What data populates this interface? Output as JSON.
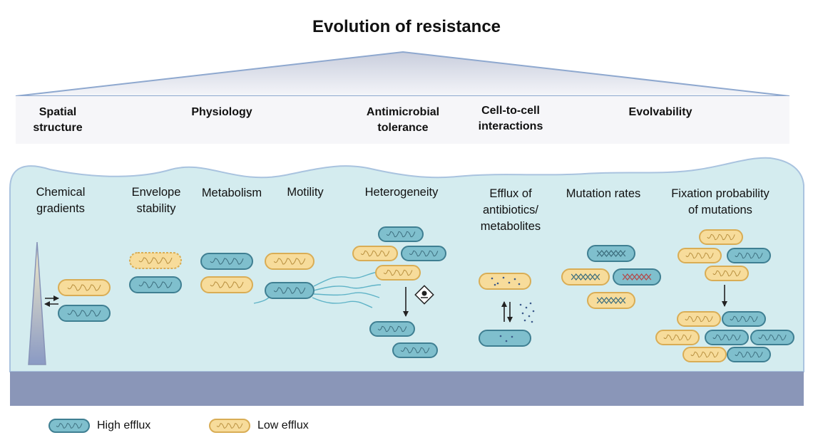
{
  "title": "Evolution of resistance",
  "categories": [
    {
      "line1": "Spatial",
      "line2": "structure"
    },
    {
      "line1": "Physiology",
      "line2": ""
    },
    {
      "line1": "Antimicrobial",
      "line2": "tolerance"
    },
    {
      "line1": "Cell-to-cell",
      "line2": "interactions"
    },
    {
      "line1": "Evolvability",
      "line2": ""
    }
  ],
  "labels": [
    {
      "line1": "Chemical",
      "line2": "gradients",
      "line3": ""
    },
    {
      "line1": "Envelope",
      "line2": "stability",
      "line3": ""
    },
    {
      "line1": "Metabolism",
      "line2": "",
      "line3": ""
    },
    {
      "line1": "Motility",
      "line2": "",
      "line3": ""
    },
    {
      "line1": "Heterogeneity",
      "line2": "",
      "line3": ""
    },
    {
      "line1": "Efflux of",
      "line2": "antibiotics/",
      "line3": "metabolites"
    },
    {
      "line1": "Mutation rates",
      "line2": "",
      "line3": ""
    },
    {
      "line1": "Fixation probability",
      "line2": "of mutations",
      "line3": ""
    }
  ],
  "legend": {
    "high": "High efflux",
    "low": "Low efflux"
  },
  "colors": {
    "high_fill": "#7fbfcd",
    "high_stroke": "#3f7f92",
    "low_fill": "#f7dc9b",
    "low_stroke": "#d9ad55",
    "water": "#d4ecef",
    "floor": "#8a96b8"
  }
}
